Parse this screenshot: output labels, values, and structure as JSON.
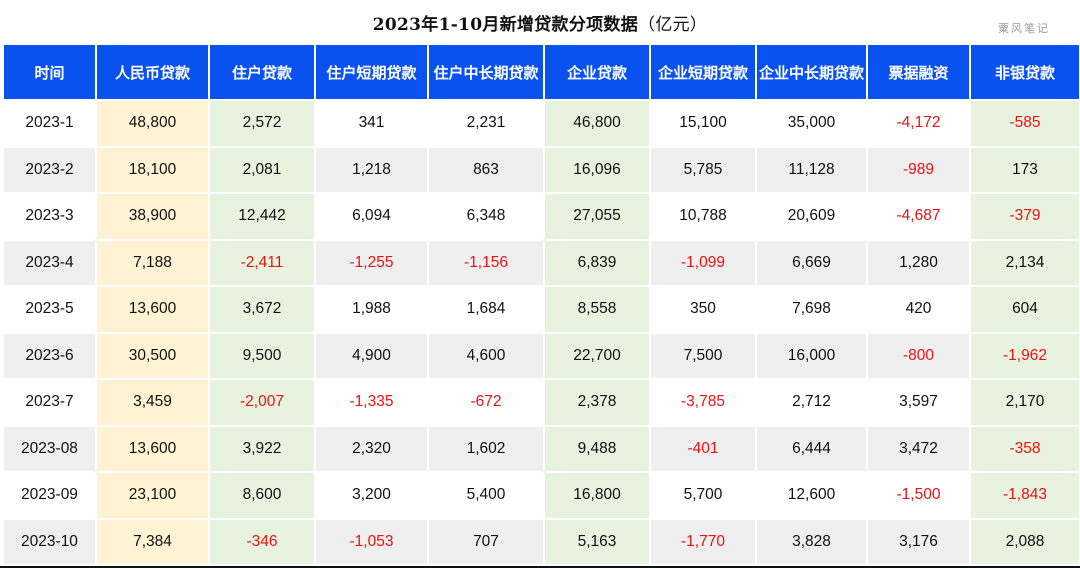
{
  "title": "2023年1-10月新增贷款分项数据",
  "unit": "（亿元）",
  "watermark": "粟风笔记",
  "colors": {
    "header_bg": "#0a52f0",
    "rmb_col_bg": "#fff3d4",
    "green_col_bg": "#e7f3df",
    "negative": "#ee1111",
    "alt_row_bg": "#efefef"
  },
  "headers": [
    "时间",
    "人民币贷款",
    "住户贷款",
    "住户短期贷款",
    "住户中长期贷款",
    "企业贷款",
    "企业短期贷款",
    "企业中长期贷款",
    "票据融资",
    "非银贷款"
  ],
  "rows": [
    [
      "2023-1",
      "48,800",
      "2,572",
      "341",
      "2,231",
      "46,800",
      "15,100",
      "35,000",
      "-4,172",
      "-585"
    ],
    [
      "2023-2",
      "18,100",
      "2,081",
      "1,218",
      "863",
      "16,096",
      "5,785",
      "11,128",
      "-989",
      "173"
    ],
    [
      "2023-3",
      "38,900",
      "12,442",
      "6,094",
      "6,348",
      "27,055",
      "10,788",
      "20,609",
      "-4,687",
      "-379"
    ],
    [
      "2023-4",
      "7,188",
      "-2,411",
      "-1,255",
      "-1,156",
      "6,839",
      "-1,099",
      "6,669",
      "1,280",
      "2,134"
    ],
    [
      "2023-5",
      "13,600",
      "3,672",
      "1,988",
      "1,684",
      "8,558",
      "350",
      "7,698",
      "420",
      "604"
    ],
    [
      "2023-6",
      "30,500",
      "9,500",
      "4,900",
      "4,600",
      "22,700",
      "7,500",
      "16,000",
      "-800",
      "-1,962"
    ],
    [
      "2023-7",
      "3,459",
      "-2,007",
      "-1,335",
      "-672",
      "2,378",
      "-3,785",
      "2,712",
      "3,597",
      "2,170"
    ],
    [
      "2023-08",
      "13,600",
      "3,922",
      "2,320",
      "1,602",
      "9,488",
      "-401",
      "6,444",
      "3,472",
      "-358"
    ],
    [
      "2023-09",
      "23,100",
      "8,600",
      "3,200",
      "5,400",
      "16,800",
      "5,700",
      "12,600",
      "-1,500",
      "-1,843"
    ],
    [
      "2023-10",
      "7,384",
      "-346",
      "-1,053",
      "707",
      "5,163",
      "-1,770",
      "3,828",
      "3,176",
      "2,088"
    ]
  ]
}
